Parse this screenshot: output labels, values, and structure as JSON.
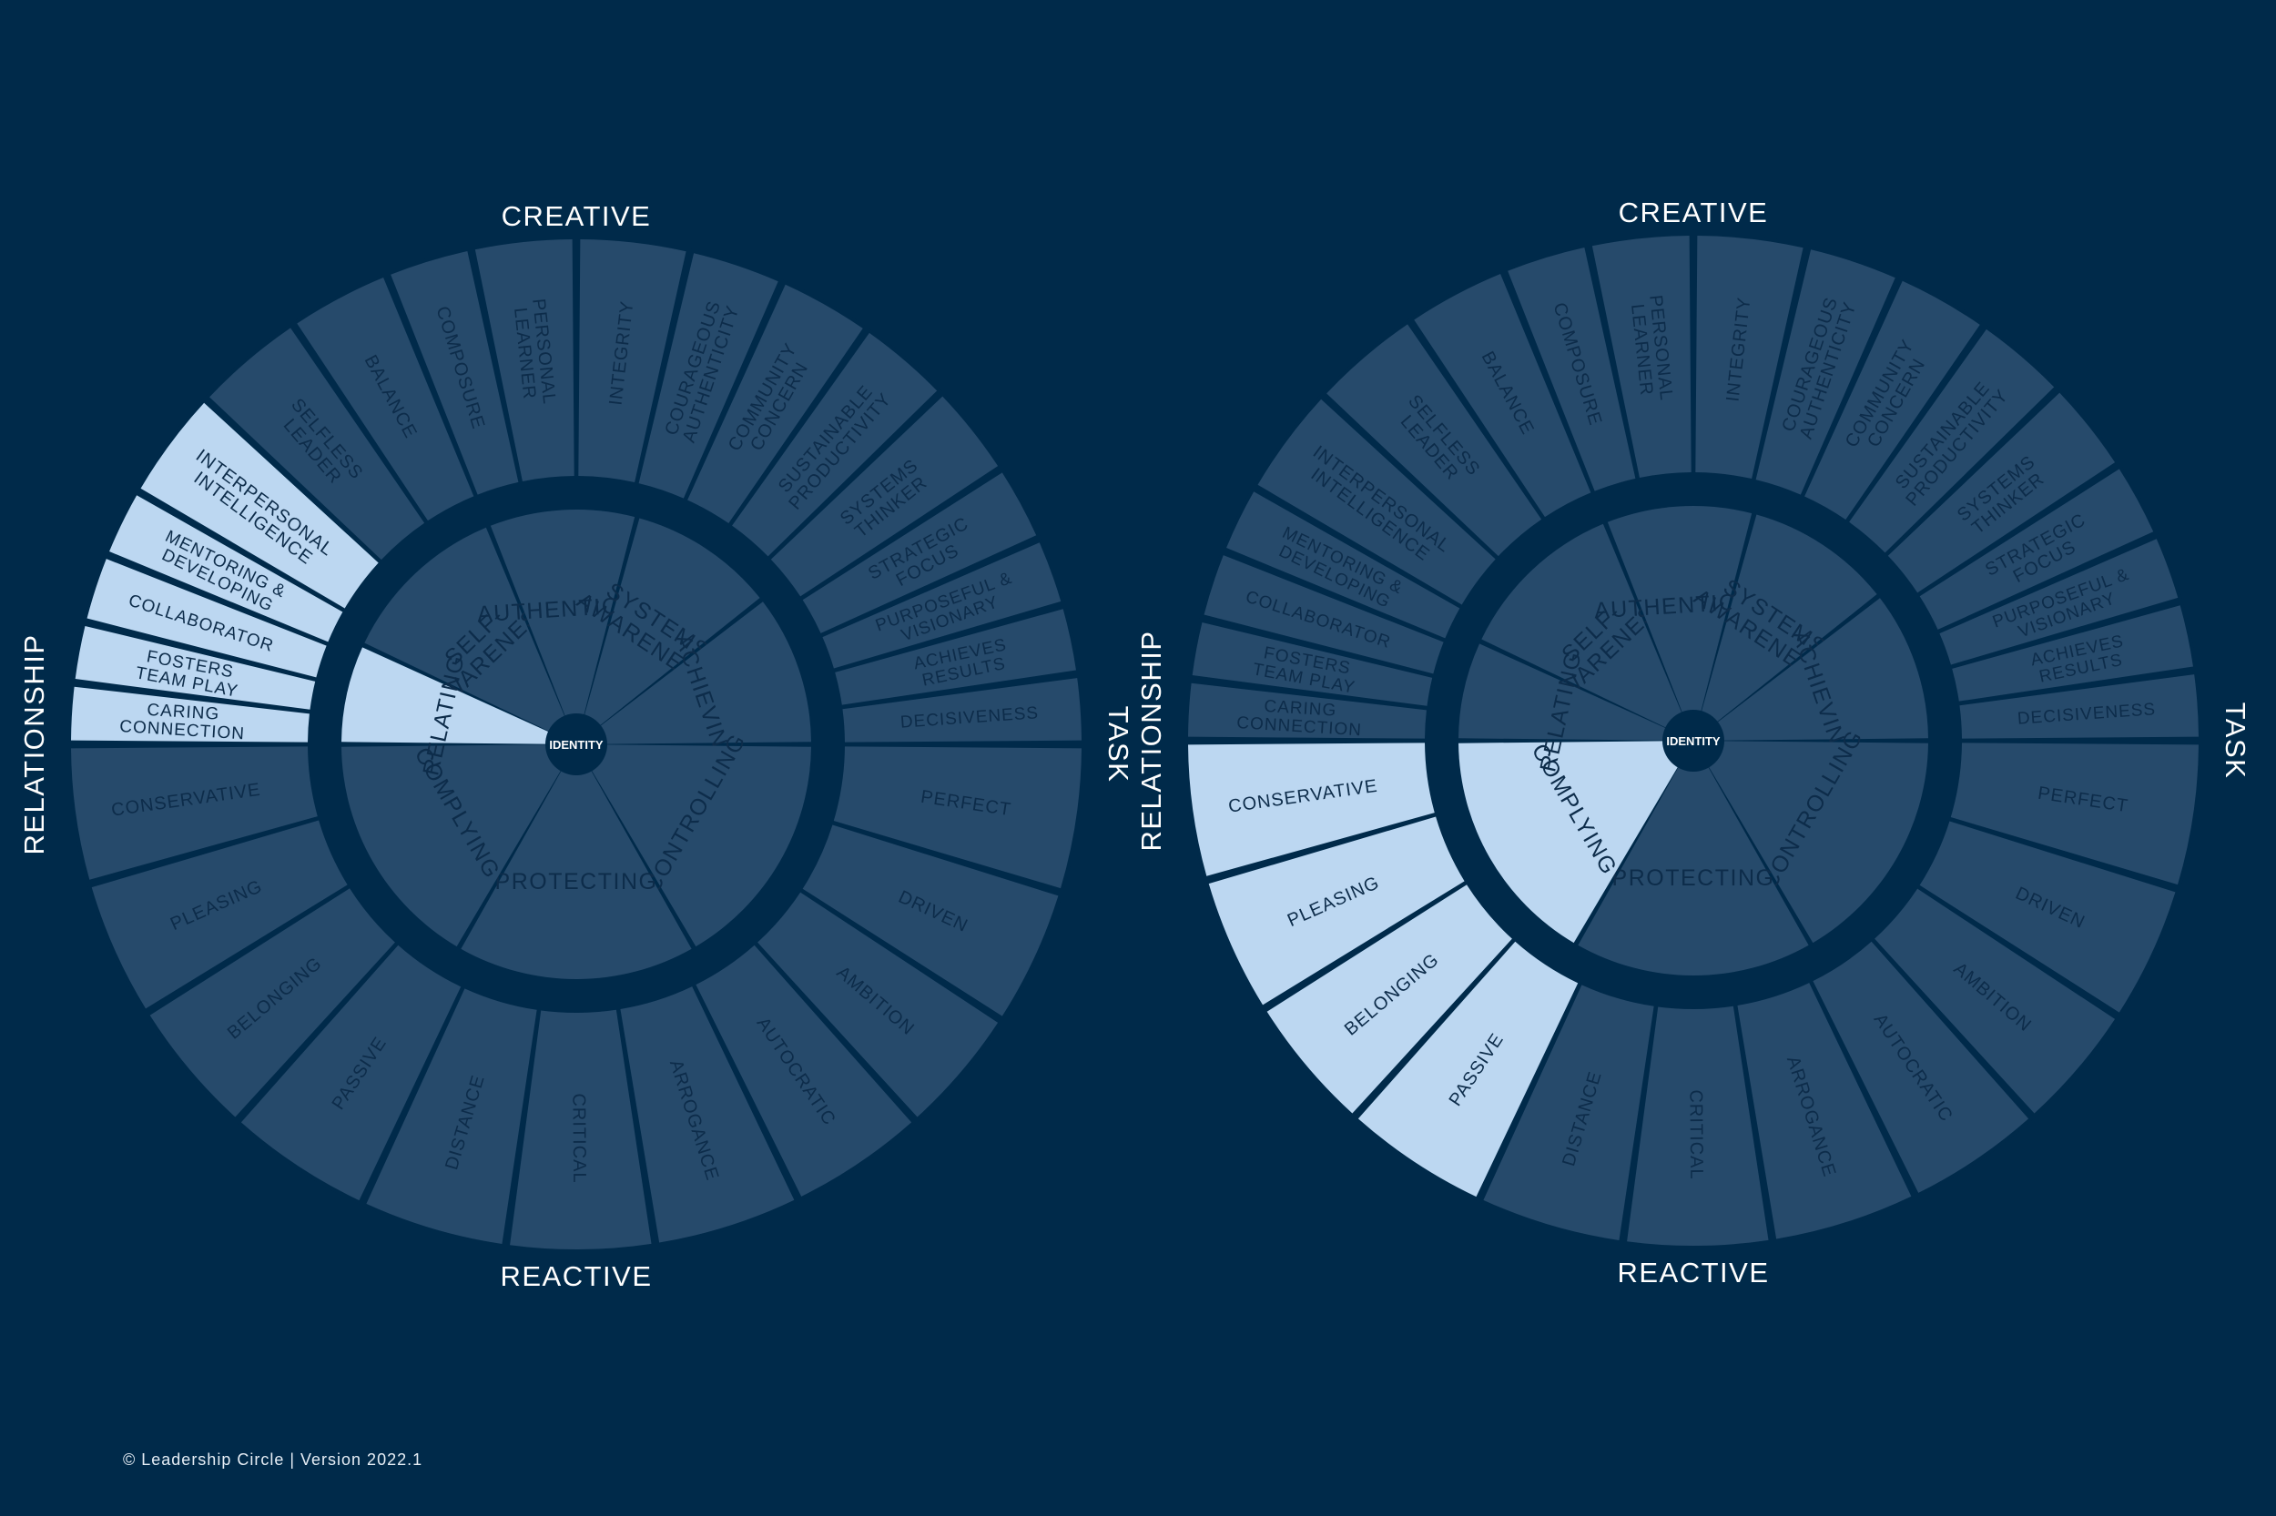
{
  "footer": "© Leadership Circle | Version 2022.1",
  "center_label": "IDENTITY",
  "axis_labels": {
    "top": "CREATIVE",
    "bottom": "REACTIVE",
    "left": "RELATIONSHIP",
    "right": "TASK"
  },
  "outer_creative_right": [
    "INTEGRITY",
    "COURAGEOUS AUTHENTICITY",
    "COMMUNITY CONCERN",
    "SUSTAINABLE PRODUCTIVITY",
    "SYSTEMS THINKER",
    "STRATEGIC FOCUS",
    "PURPOSEFUL & VISIONARY",
    "ACHIEVES RESULTS",
    "DECISIVENESS"
  ],
  "outer_creative_left": [
    "PERSONAL LEARNER",
    "COMPOSURE",
    "BALANCE",
    "SELFLESS LEADER",
    "INTERPERSONAL INTELLIGENCE",
    "MENTORING & DEVELOPING",
    "COLLABORATOR",
    "FOSTERS TEAM PLAY",
    "CARING CONNECTION"
  ],
  "outer_reactive": [
    "PERFECT",
    "DRIVEN",
    "AMBITION",
    "AUTOCRATIC",
    "ARROGANCE",
    "CRITICAL",
    "DISTANCE",
    "PASSIVE",
    "BELONGING",
    "PLEASING",
    "CONSERVATIVE"
  ],
  "inner_dimensions": [
    "SELF-AWARENESS",
    "AUTHENTICITY",
    "SYSTEMS AWARENESS",
    "ACHIEVING",
    "CONTROLLING",
    "PROTECTING",
    "COMPLYING",
    "RELATING"
  ],
  "colors": {
    "background": "#002a4a",
    "segment": "#264a6b",
    "segment_text": "#0d2c4a",
    "highlight": "#bcd7f1",
    "highlight_text": "#0d2c4a",
    "axis_text": "#ffffff"
  },
  "wheels": [
    {
      "name": "Relating highlighted",
      "highlight_dimension": "RELATING",
      "highlight_outer": [
        "INTERPERSONAL INTELLIGENCE",
        "MENTORING & DEVELOPING",
        "COLLABORATOR",
        "FOSTERS TEAM PLAY",
        "CARING CONNECTION"
      ]
    },
    {
      "name": "Complying highlighted",
      "highlight_dimension": "COMPLYING",
      "highlight_outer": [
        "CONSERVATIVE",
        "PLEASING",
        "BELONGING",
        "PASSIVE"
      ]
    }
  ]
}
